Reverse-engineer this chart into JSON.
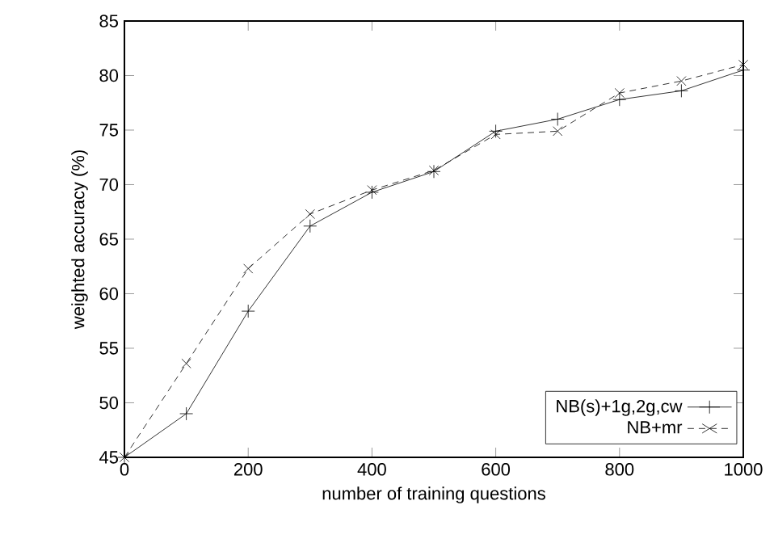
{
  "chart_data": {
    "type": "line",
    "xlabel": "number of training questions",
    "ylabel": "weighted accuracy (%)",
    "x": [
      0,
      100,
      200,
      300,
      400,
      500,
      600,
      700,
      800,
      900,
      1000
    ],
    "series": [
      {
        "name": "NB(s)+1g,2g,cw",
        "color": "#000000",
        "marker": "cross",
        "line_style": "solid",
        "values": [
          45,
          49.0,
          58.4,
          66.2,
          69.3,
          71.2,
          74.9,
          76.0,
          77.8,
          78.6,
          80.5
        ]
      },
      {
        "name": "NB+mr",
        "color": "#000000",
        "marker": "x",
        "line_style": "dashed",
        "values": [
          45,
          53.6,
          62.3,
          67.3,
          69.5,
          71.3,
          74.6,
          74.9,
          78.4,
          79.5,
          81.0
        ]
      }
    ],
    "xlim": [
      0,
      1000
    ],
    "xticks": [
      0,
      200,
      400,
      600,
      800,
      1000
    ],
    "ylim": [
      45,
      85
    ],
    "yticks": [
      45,
      50,
      55,
      60,
      65,
      70,
      75,
      80,
      85
    ],
    "grid": false,
    "legend": "bottom right"
  }
}
